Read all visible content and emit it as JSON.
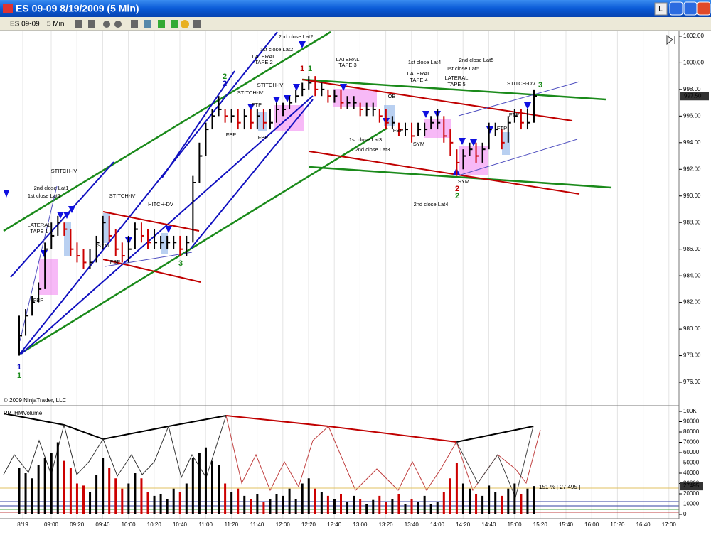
{
  "window": {
    "title": "ES 09-09  8/19/2009 (5 Min)",
    "instrument": "ES 09-09",
    "interval": "5 Min",
    "button": "L"
  },
  "chart_data": {
    "type": "ohlc",
    "up_color": "#000000",
    "down_color": "#cc0000",
    "x_labels": [
      "8/19",
      "09:00",
      "09:20",
      "09:40",
      "10:00",
      "10:20",
      "10:40",
      "11:00",
      "11:20",
      "11:40",
      "12:00",
      "12:20",
      "12:40",
      "13:00",
      "13:20",
      "13:40",
      "14:00",
      "14:20",
      "14:40",
      "15:00",
      "15:20",
      "15:40",
      "16:00",
      "16:20",
      "16:40",
      "17:00"
    ],
    "high": [
      981,
      981.5,
      982.5,
      983.5,
      986.5,
      988,
      988.5,
      988,
      987.5,
      986.5,
      986,
      986,
      987,
      988.5,
      988.5,
      987.5,
      986.5,
      987,
      988,
      988,
      987.5,
      987.5,
      987,
      987,
      987,
      987,
      987,
      991.5,
      994,
      995.5,
      996.5,
      997.5,
      996.5,
      996.5,
      996.5,
      996.5,
      996.5,
      996.5,
      996.5,
      996.5,
      997,
      997,
      997.5,
      998,
      998.5,
      999,
      999,
      998.5,
      998,
      998,
      998,
      997.5,
      997.5,
      997,
      997,
      997,
      996.5,
      996.5,
      996,
      995.5,
      995.5,
      995.5,
      995.5,
      995.5,
      996,
      996.5,
      996,
      995,
      993.5,
      993.5,
      994,
      994,
      994,
      995.5,
      995.5,
      995,
      996,
      996.5,
      996.5,
      996.5,
      998
    ],
    "low": [
      978,
      979.5,
      981,
      982,
      983,
      986,
      987,
      987,
      985.5,
      985,
      984.5,
      984.5,
      985,
      986,
      986.5,
      985.5,
      985,
      985,
      986,
      986.5,
      986,
      986,
      986,
      986,
      986,
      985.5,
      985.5,
      986.5,
      991,
      993,
      995,
      996,
      995.5,
      995.5,
      995,
      995,
      995,
      995,
      995,
      995,
      995.5,
      996,
      996.5,
      997,
      997.5,
      998,
      997.5,
      997.5,
      997,
      997,
      996.5,
      996.5,
      996.5,
      996,
      996,
      996,
      995.5,
      995,
      995,
      994.5,
      994.5,
      994,
      994.5,
      994.5,
      995,
      995,
      994,
      993,
      991.5,
      992,
      993,
      992.5,
      992.5,
      993.5,
      994.5,
      993.5,
      994,
      995.5,
      995,
      995,
      995.5
    ],
    "close": [
      979.5,
      981,
      982,
      983,
      986,
      987,
      988,
      987.5,
      986,
      985.5,
      985,
      985,
      986.5,
      988,
      987,
      986,
      985.5,
      986,
      987.5,
      987,
      986.5,
      986.5,
      986.5,
      986.5,
      986.5,
      986,
      986.5,
      991,
      993,
      995,
      996,
      996.5,
      996,
      996,
      995.5,
      996,
      995.5,
      996,
      995.5,
      995.5,
      996.5,
      996.5,
      997,
      997.5,
      998,
      998.5,
      998,
      998,
      997.5,
      997.5,
      997,
      997,
      997,
      996.5,
      996.5,
      996.5,
      996,
      995.5,
      995.5,
      995,
      995,
      994.5,
      995,
      995,
      995.5,
      995.5,
      994.5,
      994,
      992.5,
      993,
      993.5,
      993,
      993.5,
      995,
      995,
      994,
      995.5,
      996,
      995.5,
      995.5,
      997.5
    ],
    "ylim": [
      974.4,
      1002.37
    ],
    "yticks": [
      {
        "value": 976,
        "label": "976.00"
      },
      {
        "value": 978,
        "label": "978.00"
      },
      {
        "value": 980,
        "label": "980.00"
      },
      {
        "value": 982,
        "label": "982.00"
      },
      {
        "value": 984,
        "label": "984.00"
      },
      {
        "value": 986,
        "label": "986.00"
      },
      {
        "value": 988,
        "label": "988.00"
      },
      {
        "value": 990,
        "label": "990.00"
      },
      {
        "value": 992,
        "label": "992.00"
      },
      {
        "value": 994,
        "label": "994.00"
      },
      {
        "value": 996,
        "label": "996.00"
      },
      {
        "value": 998,
        "label": "998.00"
      },
      {
        "value": 1000,
        "label": "1000.00"
      },
      {
        "value": 1002,
        "label": "1002.00"
      }
    ],
    "last_price": {
      "value": 997.5,
      "label": "997.50"
    },
    "volume": [
      45000,
      40000,
      35000,
      48000,
      55000,
      60000,
      70000,
      52000,
      45000,
      30000,
      28000,
      22000,
      38000,
      55000,
      45000,
      35000,
      25000,
      30000,
      40000,
      35000,
      22000,
      18000,
      20000,
      15000,
      25000,
      22000,
      30000,
      55000,
      60000,
      65000,
      52000,
      48000,
      30000,
      22000,
      25000,
      18000,
      15000,
      20000,
      12000,
      15000,
      20000,
      18000,
      25000,
      15000,
      30000,
      35000,
      25000,
      22000,
      18000,
      15000,
      20000,
      12000,
      18000,
      15000,
      10000,
      14000,
      18000,
      12000,
      15000,
      20000,
      10000,
      15000,
      12000,
      18000,
      10000,
      12000,
      22000,
      35000,
      50000,
      30000,
      25000,
      20000,
      18000,
      28000,
      22000,
      18000,
      25000,
      30000,
      20000,
      25000,
      27495
    ],
    "vlim": [
      -2760,
      103450
    ],
    "vticks": [
      0,
      10000,
      20000,
      30000,
      40000,
      50000,
      60000,
      70000,
      80000,
      90000,
      {
        "value": 100000,
        "label": "100K"
      }
    ],
    "last_volume": 27495,
    "volume_ratio_label": "151 % [ 27 495 ]",
    "indicator_name": "PP_HMVolume",
    "copyright": "© 2009 NinjaTrader, LLC",
    "annotations": [
      {
        "text": "2nd close Lat1",
        "color": "#000000"
      },
      {
        "text": "1st close Lat1",
        "color": "#000000"
      },
      {
        "text": "STITCH-IV",
        "color": "#000000"
      },
      {
        "text": "LATERAL",
        "color": "#000000"
      },
      {
        "text": "TAPE 1",
        "color": "#000000"
      },
      {
        "text": "FBP",
        "color": "#000000"
      },
      {
        "text": "STITCH-IV",
        "color": "#000000"
      },
      {
        "text": "SYM",
        "color": "#000000"
      },
      {
        "text": "FBP",
        "color": "#000000"
      },
      {
        "text": "HITCH-DV",
        "color": "#000000"
      },
      {
        "text": "FBP",
        "color": "#000000"
      },
      {
        "text": "STITCH-IV",
        "color": "#000000"
      },
      {
        "text": "FTP",
        "color": "#000000"
      },
      {
        "text": "FBP",
        "color": "#000000"
      },
      {
        "text": "STITCH-IV",
        "color": "#000000"
      },
      {
        "text": "1st close Lat2",
        "color": "#000000"
      },
      {
        "text": "LATERAL",
        "color": "#000000"
      },
      {
        "text": "TAPE 2",
        "color": "#000000"
      },
      {
        "text": "2nd close Lat2",
        "color": "#000000"
      },
      {
        "text": "LATERAL",
        "color": "#000000"
      },
      {
        "text": "TAPE 3",
        "color": "#000000"
      },
      {
        "text": "OB",
        "color": "#000000"
      },
      {
        "text": "1st close Lat3",
        "color": "#000000"
      },
      {
        "text": "2nd close Lat3",
        "color": "#000000"
      },
      {
        "text": "FBP",
        "color": "#000000"
      },
      {
        "text": "SYM",
        "color": "#000000"
      },
      {
        "text": "1st close Lat4",
        "color": "#000000"
      },
      {
        "text": "LATERAL",
        "color": "#000000"
      },
      {
        "text": "TAPE 4",
        "color": "#000000"
      },
      {
        "text": "2nd close Lat5",
        "color": "#000000"
      },
      {
        "text": "1st close Lat5",
        "color": "#000000"
      },
      {
        "text": "LATERAL",
        "color": "#000000"
      },
      {
        "text": "TAPE 5",
        "color": "#000000"
      },
      {
        "text": "STITCH-DV",
        "color": "#000000"
      },
      {
        "text": "FTP",
        "color": "#000000"
      },
      {
        "text": "FTP",
        "color": "#000000"
      },
      {
        "text": "SYM",
        "color": "#000000"
      },
      {
        "text": "2nd close Lat4",
        "color": "#000000"
      },
      {
        "text": "2",
        "color": "#1a8a1a"
      },
      {
        "text": "2",
        "color": "#1010c0"
      },
      {
        "text": "1",
        "color": "#c00000"
      },
      {
        "text": "1",
        "color": "#1a8a1a"
      },
      {
        "text": "3",
        "color": "#1a8a1a"
      },
      {
        "text": "3",
        "color": "#1a8a1a"
      },
      {
        "text": "2",
        "color": "#c00000"
      },
      {
        "text": "2",
        "color": "#1a8a1a"
      },
      {
        "text": "1",
        "color": "#1010c0"
      },
      {
        "text": "1",
        "color": "#1a8a1a"
      }
    ]
  }
}
